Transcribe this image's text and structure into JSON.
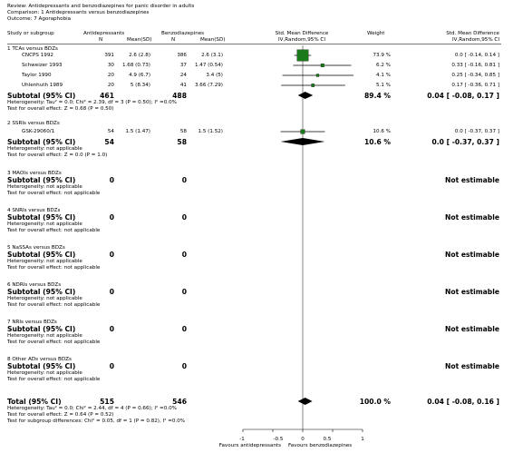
{
  "header": {
    "review": "Review:  Antidepressants and benzodiazepines for panic disorder in adults",
    "comparison": "Comparison:  1 Antidepressants versus benzodiazepines",
    "outcome": "Outcome:  7 Agoraphobia"
  },
  "columns": {
    "study": "Study or subgroup",
    "group1": "Antidepressants",
    "group2": "Benzodiazepines",
    "n": "N",
    "meansd": "Mean(SD)",
    "smd_title": "Std. Mean Difference",
    "smd_sub": "IV,Random,95% CI",
    "weight": "Weight",
    "smd_title2": "Std. Mean Difference",
    "smd_sub2": "IV,Random,95% CI"
  },
  "subgroups": [
    {
      "title": "1 TCAs versus BDZs",
      "studies": [
        {
          "name": "CNCPS 1992",
          "n1": "391",
          "m1": "2.6 (2.8)",
          "n2": "386",
          "m2": "2.6 (3.1)",
          "weight": "73.9 %",
          "ci": "0.0 [ -0.14, 0.14 ]"
        },
        {
          "name": "Schweizer 1993",
          "n1": "30",
          "m1": "1.68 (0.73)",
          "n2": "37",
          "m2": "1.47 (0.54)",
          "weight": "6.2 %",
          "ci": "0.33 [ -0.16, 0.81 ]"
        },
        {
          "name": "Taylor 1990",
          "n1": "20",
          "m1": "4.9 (6.7)",
          "n2": "24",
          "m2": "3.4 (5)",
          "weight": "4.1 %",
          "ci": "0.25 [ -0.34, 0.85 ]"
        },
        {
          "name": "Uhlenhuth 1989",
          "n1": "20",
          "m1": "5 (8.34)",
          "n2": "41",
          "m2": "3.66 (7.29)",
          "weight": "5.1 %",
          "ci": "0.17 [ -0.36, 0.71 ]"
        }
      ],
      "subtotal": {
        "label": "Subtotal (95% CI)",
        "n1": "461",
        "n2": "488",
        "weight": "89.4 %",
        "ci": "0.04 [ -0.08, 0.17 ]"
      },
      "het": "Heterogeneity: Tau² = 0.0; Chi² = 2.39, df = 3 (P = 0.50); I² =0.0%",
      "test": "Test for overall effect: Z = 0.68 (P = 0.50)"
    },
    {
      "title": "2 SSRIs versus BDZs",
      "studies": [
        {
          "name": "GSK-29060/1",
          "n1": "54",
          "m1": "1.5 (1.47)",
          "n2": "58",
          "m2": "1.5 (1.52)",
          "weight": "10.6 %",
          "ci": "0.0 [ -0.37, 0.37 ]"
        }
      ],
      "subtotal": {
        "label": "Subtotal (95% CI)",
        "n1": "54",
        "n2": "58",
        "weight": "10.6 %",
        "ci": "0.0 [ -0.37, 0.37 ]"
      },
      "het": "Heterogeneity: not applicable",
      "test": "Test for overall effect: Z = 0.0 (P = 1.0)"
    },
    {
      "title": "3 MAOIs versus BDZs",
      "subtotal": {
        "label": "Subtotal (95% CI)",
        "n1": "0",
        "n2": "0",
        "ci": "Not estimable"
      },
      "het": "Heterogeneity: not applicable",
      "test": "Test for overall effect: not applicable"
    },
    {
      "title": "4 SNRIs versus BDZs",
      "subtotal": {
        "label": "Subtotal (95% CI)",
        "n1": "0",
        "n2": "0",
        "ci": "Not estimable"
      },
      "het": "Heterogeneity: not applicable",
      "test": "Test for overall effect: not applicable"
    },
    {
      "title": "5 NaSSAs versus BDZs",
      "subtotal": {
        "label": "Subtotal (95% CI)",
        "n1": "0",
        "n2": "0",
        "ci": "Not estimable"
      },
      "het": "Heterogeneity: not applicable",
      "test": "Test for overall effect: not applicable"
    },
    {
      "title": "6 NDRIs versus BDZs",
      "subtotal": {
        "label": "Subtotal (95% CI)",
        "n1": "0",
        "n2": "0",
        "ci": "Not estimable"
      },
      "het": "Heterogeneity: not applicable",
      "test": "Test for overall effect: not applicable"
    },
    {
      "title": "7 NRIs versus BDZs",
      "subtotal": {
        "label": "Subtotal (95% CI)",
        "n1": "0",
        "n2": "0",
        "ci": "Not estimable"
      },
      "het": "Heterogeneity: not applicable",
      "test": "Test for overall effect: not applicable"
    },
    {
      "title": "8 Other ADs versus BDZs",
      "subtotal": {
        "label": "Subtotal (95% CI)",
        "n1": "0",
        "n2": "0",
        "ci": "Not estimable"
      },
      "het": "Heterogeneity: not applicable",
      "test": "Test for overall effect: not applicable"
    }
  ],
  "total": {
    "label": "Total (95% CI)",
    "n1": "515",
    "n2": "546",
    "weight": "100.0 %",
    "ci": "0.04 [ -0.08, 0.16 ]",
    "het": "Heterogeneity: Tau² = 0.0; Chi² = 2.44, df = 4 (P = 0.66); I² =0.0%",
    "test": "Test for overall effect: Z = 0.64 (P = 0.52)",
    "subgroup_test": "Test for subgroup differences: Chi² = 0.05, df = 1 (P = 0.82), I² =0.0%"
  },
  "axis": {
    "ticks": [
      "-1",
      "-0.5",
      "0",
      "0.5",
      "1"
    ],
    "left_label": "Favours antidepressants",
    "right_label": "Favours benzodiazepines"
  },
  "chart_data": {
    "type": "forest",
    "xlim": [
      -1,
      1
    ],
    "x_ticks": [
      -1,
      -0.5,
      0,
      0.5,
      1
    ],
    "xlabel_left": "Favours antidepressants",
    "xlabel_right": "Favours benzodiazepines",
    "studies": [
      {
        "name": "CNCPS 1992",
        "est": 0.0,
        "lo": -0.14,
        "hi": 0.14,
        "weight": 73.9
      },
      {
        "name": "Schweizer 1993",
        "est": 0.33,
        "lo": -0.16,
        "hi": 0.81,
        "weight": 6.2
      },
      {
        "name": "Taylor 1990",
        "est": 0.25,
        "lo": -0.34,
        "hi": 0.85,
        "weight": 4.1
      },
      {
        "name": "Uhlenhuth 1989",
        "est": 0.17,
        "lo": -0.36,
        "hi": 0.71,
        "weight": 5.1
      },
      {
        "name": "GSK-29060/1",
        "est": 0.0,
        "lo": -0.37,
        "hi": 0.37,
        "weight": 10.6
      }
    ],
    "diamonds": [
      {
        "name": "Subtotal 1 TCAs versus BDZs",
        "est": 0.04,
        "lo": -0.08,
        "hi": 0.17
      },
      {
        "name": "Subtotal 2 SSRIs versus BDZs",
        "est": 0.0,
        "lo": -0.37,
        "hi": 0.37
      },
      {
        "name": "Total",
        "est": 0.04,
        "lo": -0.08,
        "hi": 0.16
      }
    ],
    "marker_color": "#1a7a1a"
  }
}
